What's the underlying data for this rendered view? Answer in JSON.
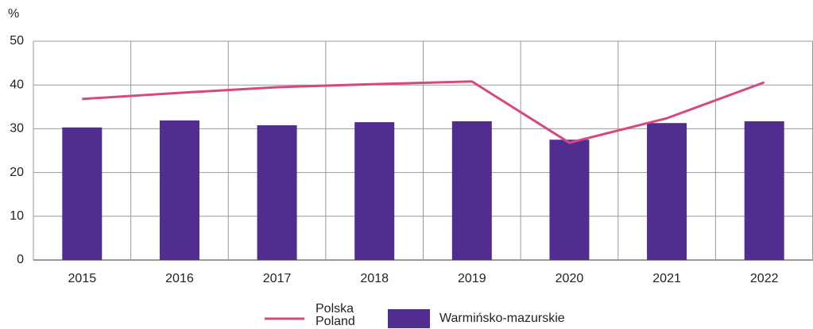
{
  "chart_data": {
    "type": "bar",
    "y_unit": "%",
    "categories": [
      "2015",
      "2016",
      "2017",
      "2018",
      "2019",
      "2020",
      "2021",
      "2022"
    ],
    "series": [
      {
        "name": "Warmińsko-mazurskie",
        "type": "bar",
        "color": "#512d8f",
        "values": [
          30.3,
          31.9,
          30.8,
          31.5,
          31.7,
          27.5,
          31.3,
          31.7
        ]
      },
      {
        "name": "Polska",
        "name_en": "Poland",
        "type": "line",
        "color": "#d6487f",
        "values": [
          36.8,
          38.2,
          39.5,
          40.2,
          40.8,
          26.8,
          32.4,
          40.6
        ]
      }
    ],
    "ylim": [
      0,
      50
    ],
    "yticks": [
      0,
      10,
      20,
      30,
      40,
      50
    ],
    "grid": true
  }
}
